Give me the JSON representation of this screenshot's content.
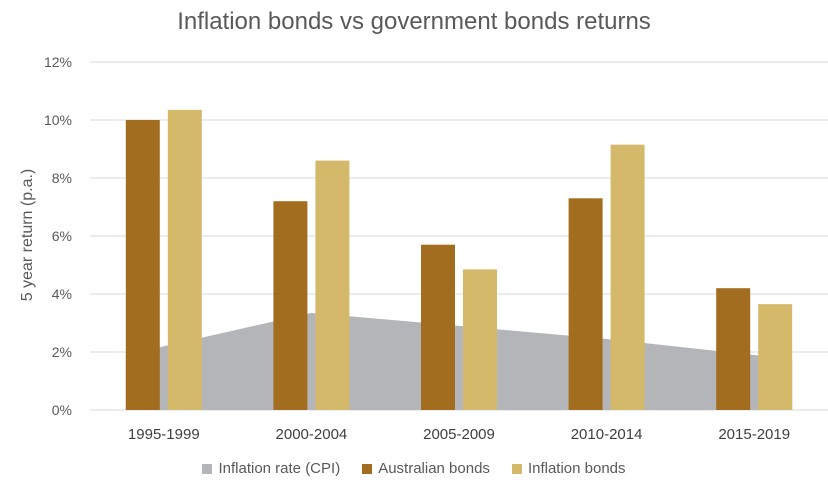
{
  "chart_data": {
    "type": "bar",
    "title": "Inflation bonds vs government bonds returns",
    "xlabel": "",
    "ylabel": "5 year return (p.a.)",
    "ylim": [
      0,
      12
    ],
    "yticks": [
      "0%",
      "2%",
      "4%",
      "6%",
      "8%",
      "10%",
      "12%"
    ],
    "ytick_values": [
      0,
      2,
      4,
      6,
      8,
      10,
      12
    ],
    "grid": true,
    "legend_position": "bottom",
    "categories": [
      "1995-1999",
      "2000-2004",
      "2005-2009",
      "2010-2014",
      "2015-2019"
    ],
    "series": [
      {
        "name": "Inflation rate (CPI)",
        "type": "area",
        "color": "#b4b5b8",
        "values": [
          1.9,
          3.35,
          2.9,
          2.45,
          1.75
        ]
      },
      {
        "name": "Australian bonds",
        "type": "bar",
        "color": "#a36d1f",
        "values": [
          10.0,
          7.2,
          5.7,
          7.3,
          4.2
        ]
      },
      {
        "name": "Inflation bonds",
        "type": "bar",
        "color": "#d4b96b",
        "values": [
          10.35,
          8.6,
          4.85,
          9.15,
          3.65
        ]
      }
    ]
  }
}
